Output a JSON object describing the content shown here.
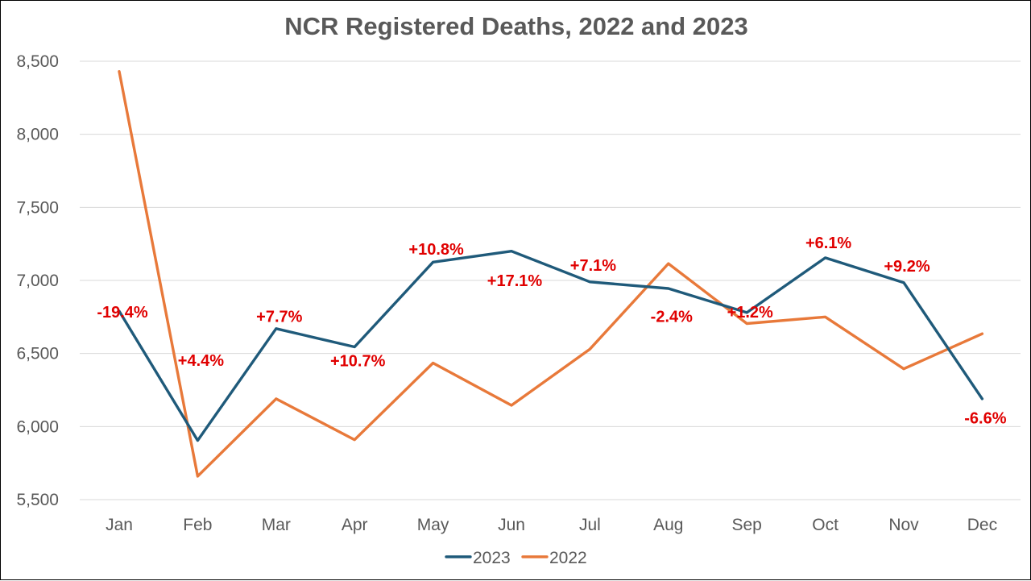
{
  "chart_data": {
    "type": "line",
    "title": "NCR Registered Deaths, 2022 and 2023",
    "xlabel": "",
    "ylabel": "",
    "categories": [
      "Jan",
      "Feb",
      "Mar",
      "Apr",
      "May",
      "Jun",
      "Jul",
      "Aug",
      "Sep",
      "Oct",
      "Nov",
      "Dec"
    ],
    "ylim": [
      5500,
      8500
    ],
    "yticks": [
      5500,
      6000,
      6500,
      7000,
      7500,
      8000,
      8500
    ],
    "ytick_labels": [
      "5,500",
      "6,000",
      "6,500",
      "7,000",
      "7,500",
      "8,000",
      "8,500"
    ],
    "grid": true,
    "legend_position": "bottom",
    "series": [
      {
        "name": "2023",
        "color": "#1f5a7a",
        "values": [
          6790,
          5905,
          6670,
          6545,
          7125,
          7200,
          6990,
          6945,
          6780,
          7155,
          6985,
          6190
        ]
      },
      {
        "name": "2022",
        "color": "#e8793a",
        "values": [
          8430,
          5660,
          6190,
          5910,
          6435,
          6145,
          6530,
          7115,
          6705,
          6750,
          6395,
          6635
        ]
      }
    ],
    "annotations": [
      {
        "category": "Jan",
        "text": "-19.4%",
        "y_value": 6785
      },
      {
        "category": "Feb",
        "text": "+4.4%",
        "y_value": 6455
      },
      {
        "category": "Mar",
        "text": "+7.7%",
        "y_value": 6755
      },
      {
        "category": "Apr",
        "text": "+10.7%",
        "y_value": 6450
      },
      {
        "category": "May",
        "text": "+10.8%",
        "y_value": 7215
      },
      {
        "category": "Jun",
        "text": "+17.1%",
        "y_value": 7000
      },
      {
        "category": "Jul",
        "text": "+7.1%",
        "y_value": 7105
      },
      {
        "category": "Aug",
        "text": "-2.4%",
        "y_value": 6755
      },
      {
        "category": "Sep",
        "text": "+1.2%",
        "y_value": 6785
      },
      {
        "category": "Oct",
        "text": "+6.1%",
        "y_value": 7260
      },
      {
        "category": "Nov",
        "text": "+9.2%",
        "y_value": 7100
      },
      {
        "category": "Dec",
        "text": "-6.6%",
        "y_value": 6060
      }
    ]
  }
}
